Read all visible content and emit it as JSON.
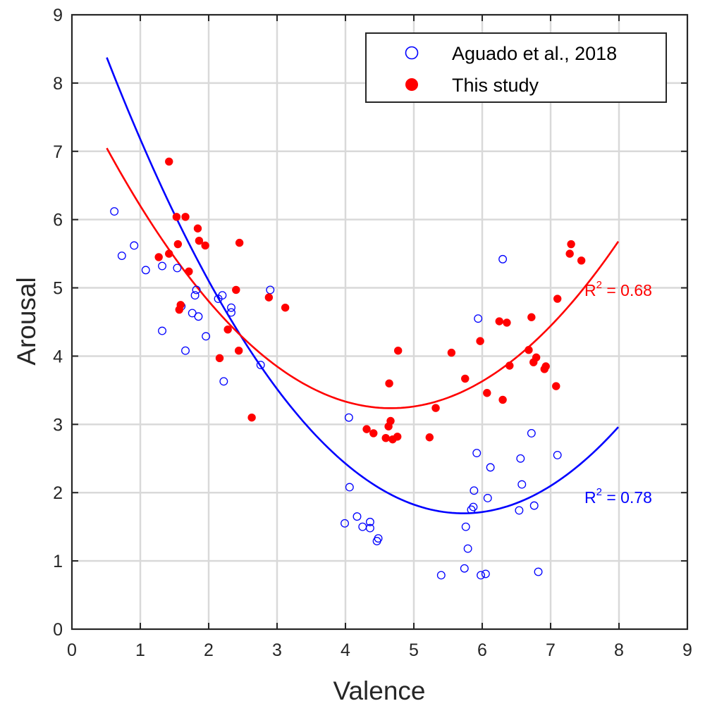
{
  "chart_data": {
    "type": "scatter",
    "title": "",
    "xlabel": "Valence",
    "ylabel": "Arousal",
    "xlim": [
      0,
      9
    ],
    "ylim": [
      0,
      9
    ],
    "xticks": [
      0,
      1,
      2,
      3,
      4,
      5,
      6,
      7,
      8,
      9
    ],
    "yticks": [
      0,
      1,
      2,
      3,
      4,
      5,
      6,
      7,
      8,
      9
    ],
    "xtick_labels": [
      "0",
      "1",
      "2",
      "3",
      "4",
      "5",
      "6",
      "7",
      "8",
      "9"
    ],
    "ytick_labels": [
      "0",
      "1",
      "2",
      "3",
      "4",
      "5",
      "6",
      "7",
      "8",
      "9"
    ],
    "grid": true,
    "legend_position": "top-right",
    "series": [
      {
        "name": "Aguado et al., 2018",
        "color": "#0000ff",
        "marker": "open-circle",
        "points": [
          [
            0.62,
            6.12
          ],
          [
            0.73,
            5.47
          ],
          [
            0.91,
            5.62
          ],
          [
            1.08,
            5.26
          ],
          [
            1.32,
            5.32
          ],
          [
            1.54,
            5.29
          ],
          [
            1.32,
            4.37
          ],
          [
            1.6,
            4.73
          ],
          [
            1.66,
            4.08
          ],
          [
            1.76,
            4.63
          ],
          [
            1.8,
            4.89
          ],
          [
            1.82,
            4.97
          ],
          [
            1.85,
            4.58
          ],
          [
            1.96,
            4.29
          ],
          [
            2.14,
            4.84
          ],
          [
            2.2,
            4.89
          ],
          [
            2.22,
            3.63
          ],
          [
            2.33,
            4.71
          ],
          [
            2.33,
            4.64
          ],
          [
            2.76,
            3.87
          ],
          [
            2.9,
            4.97
          ],
          [
            3.99,
            1.55
          ],
          [
            4.05,
            3.1
          ],
          [
            4.06,
            2.08
          ],
          [
            4.17,
            1.65
          ],
          [
            4.25,
            1.5
          ],
          [
            4.36,
            1.57
          ],
          [
            4.36,
            1.48
          ],
          [
            4.46,
            1.29
          ],
          [
            4.48,
            1.33
          ],
          [
            5.4,
            0.79
          ],
          [
            5.74,
            0.89
          ],
          [
            5.76,
            1.5
          ],
          [
            5.79,
            1.18
          ],
          [
            5.84,
            1.75
          ],
          [
            5.87,
            1.79
          ],
          [
            5.88,
            2.03
          ],
          [
            5.92,
            2.58
          ],
          [
            5.94,
            4.55
          ],
          [
            5.98,
            0.79
          ],
          [
            6.05,
            0.81
          ],
          [
            6.08,
            1.92
          ],
          [
            6.12,
            2.37
          ],
          [
            6.3,
            5.42
          ],
          [
            6.54,
            1.74
          ],
          [
            6.56,
            2.5
          ],
          [
            6.58,
            2.12
          ],
          [
            6.72,
            2.87
          ],
          [
            6.76,
            1.81
          ],
          [
            6.82,
            0.84
          ],
          [
            7.1,
            2.55
          ]
        ],
        "fit": {
          "a": 0.2458,
          "h": 5.722,
          "k": 1.697,
          "x_range": [
            0.51,
            7.99
          ]
        },
        "r2_label": "R",
        "r2_sup": "2",
        "r2_value": " = 0.78"
      },
      {
        "name": "This study",
        "color": "#ff0000",
        "marker": "filled-circle",
        "points": [
          [
            1.27,
            5.45
          ],
          [
            1.42,
            5.5
          ],
          [
            1.42,
            6.85
          ],
          [
            1.53,
            6.04
          ],
          [
            1.55,
            5.64
          ],
          [
            1.57,
            4.68
          ],
          [
            1.59,
            4.75
          ],
          [
            1.66,
            6.04
          ],
          [
            1.71,
            5.24
          ],
          [
            1.84,
            5.87
          ],
          [
            1.86,
            5.69
          ],
          [
            1.95,
            5.62
          ],
          [
            2.16,
            3.97
          ],
          [
            2.28,
            4.39
          ],
          [
            2.4,
            4.97
          ],
          [
            2.44,
            4.08
          ],
          [
            2.45,
            5.66
          ],
          [
            2.63,
            3.1
          ],
          [
            2.88,
            4.86
          ],
          [
            3.12,
            4.71
          ],
          [
            4.31,
            2.93
          ],
          [
            4.41,
            2.87
          ],
          [
            4.59,
            2.8
          ],
          [
            4.63,
            2.97
          ],
          [
            4.64,
            3.6
          ],
          [
            4.66,
            3.05
          ],
          [
            4.69,
            2.78
          ],
          [
            4.76,
            2.82
          ],
          [
            4.77,
            4.08
          ],
          [
            5.23,
            2.81
          ],
          [
            5.32,
            3.24
          ],
          [
            5.55,
            4.05
          ],
          [
            5.75,
            3.67
          ],
          [
            5.97,
            4.22
          ],
          [
            6.07,
            3.46
          ],
          [
            6.25,
            4.51
          ],
          [
            6.3,
            3.36
          ],
          [
            6.36,
            4.49
          ],
          [
            6.4,
            3.86
          ],
          [
            6.68,
            4.09
          ],
          [
            6.72,
            4.57
          ],
          [
            6.75,
            3.91
          ],
          [
            6.79,
            3.98
          ],
          [
            6.91,
            3.81
          ],
          [
            6.93,
            3.85
          ],
          [
            7.08,
            3.56
          ],
          [
            7.1,
            4.84
          ],
          [
            7.28,
            5.5
          ],
          [
            7.3,
            5.64
          ],
          [
            7.45,
            5.4
          ]
        ],
        "fit": {
          "a": 0.2208,
          "h": 4.664,
          "k": 3.237,
          "x_range": [
            0.51,
            7.99
          ]
        },
        "r2_label": "R",
        "r2_sup": "2",
        "r2_value": " = 0.68"
      }
    ]
  }
}
